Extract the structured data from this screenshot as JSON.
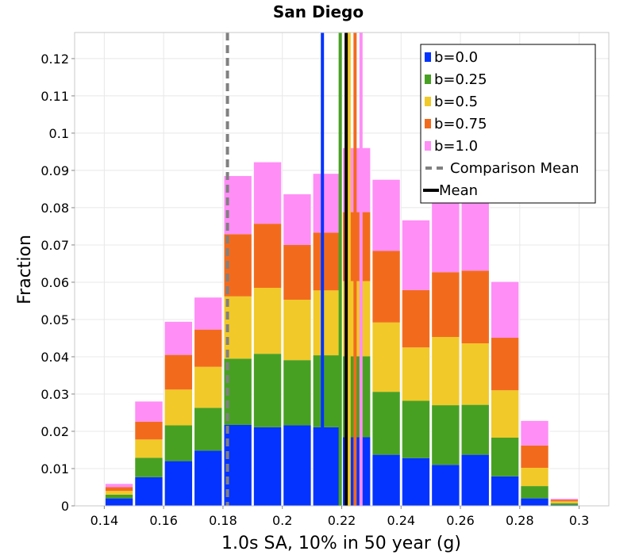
{
  "chart_data": {
    "type": "bar",
    "stacked": true,
    "title": "San Diego",
    "xlabel": "1.0s SA, 10% in 50 year (g)",
    "ylabel": "Fraction",
    "xlim": [
      0.13,
      0.31
    ],
    "ylim": [
      0,
      0.127
    ],
    "x_ticks": [
      "0.14",
      "0.16",
      "0.18",
      "0.2",
      "0.22",
      "0.24",
      "0.26",
      "0.28",
      "0.3"
    ],
    "y_ticks": [
      "0",
      "0.01",
      "0.02",
      "0.03",
      "0.04",
      "0.05",
      "0.06",
      "0.07",
      "0.08",
      "0.09",
      "0.1",
      "0.11",
      "0.12"
    ],
    "bin_width": 0.01,
    "x": [
      0.13,
      0.14,
      0.15,
      0.16,
      0.17,
      0.18,
      0.19,
      0.2,
      0.21,
      0.22,
      0.23,
      0.24,
      0.25,
      0.26,
      0.27,
      0.28,
      0.29,
      0.3
    ],
    "series": [
      {
        "name": "b=0.0",
        "color": "#0433ff",
        "values": [
          0.0002,
          0.002,
          0.0077,
          0.012,
          0.0148,
          0.0217,
          0.0211,
          0.0216,
          0.0211,
          0.0184,
          0.0137,
          0.0128,
          0.011,
          0.0137,
          0.0079,
          0.002,
          0.0002,
          0.0
        ]
      },
      {
        "name": "b=0.25",
        "color": "#48a023",
        "values": [
          0.0,
          0.001,
          0.0052,
          0.0096,
          0.0115,
          0.0178,
          0.0197,
          0.0175,
          0.0193,
          0.0217,
          0.0169,
          0.0154,
          0.016,
          0.0134,
          0.0104,
          0.0033,
          0.0005,
          0.0
        ]
      },
      {
        "name": "b=0.5",
        "color": "#f1c928",
        "values": [
          0.0,
          0.001,
          0.0049,
          0.0096,
          0.011,
          0.0167,
          0.0177,
          0.0162,
          0.0174,
          0.0202,
          0.0186,
          0.0143,
          0.0183,
          0.0165,
          0.0127,
          0.0049,
          0.0005,
          0.0
        ]
      },
      {
        "name": "b=0.75",
        "color": "#f26b1d",
        "values": [
          0.0,
          0.001,
          0.0048,
          0.0093,
          0.01,
          0.0167,
          0.0172,
          0.0147,
          0.0155,
          0.0185,
          0.0192,
          0.0154,
          0.0174,
          0.0195,
          0.0141,
          0.006,
          0.0004,
          0.0
        ]
      },
      {
        "name": "b=1.0",
        "color": "#ff8ef6",
        "values": [
          0.0,
          0.001,
          0.0055,
          0.009,
          0.0087,
          0.0157,
          0.0166,
          0.0137,
          0.0159,
          0.0173,
          0.0192,
          0.0188,
          0.0223,
          0.0228,
          0.0151,
          0.0067,
          0.0004,
          0.0
        ]
      }
    ],
    "mean_lines": [
      {
        "series": "b=0.0",
        "x": 0.2135,
        "color": "#0433ff"
      },
      {
        "series": "b=0.25",
        "x": 0.2195,
        "color": "#48a023"
      },
      {
        "series": "b=0.5",
        "x": 0.2225,
        "color": "#f1c928"
      },
      {
        "series": "b=0.75",
        "x": 0.2245,
        "color": "#f26b1d"
      },
      {
        "series": "b=1.0",
        "x": 0.2265,
        "color": "#ff8ef6"
      }
    ],
    "overall_mean": {
      "name": "Mean",
      "x": 0.2215,
      "color": "#000000"
    },
    "comparison_mean": {
      "name": "Comparison Mean",
      "x": 0.1815,
      "color": "#808080"
    },
    "legend_position": "top-right",
    "grid": true
  }
}
